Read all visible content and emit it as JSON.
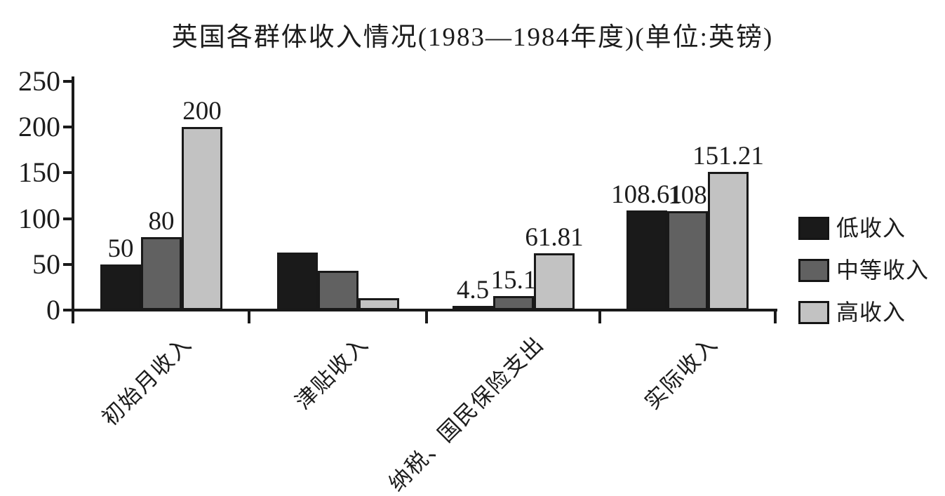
{
  "chart_data": {
    "type": "bar",
    "title": "英国各群体收入情况(1983—1984年度)(单位:英镑)",
    "unit": "英镑",
    "categories": [
      "初始月收入",
      "津贴收入",
      "纳税、国民保险支出",
      "实际收入"
    ],
    "series": [
      {
        "name": "低收入",
        "color": "#1a1a1a",
        "values": [
          50,
          63.11,
          4.5,
          108.61
        ],
        "labels": [
          "50",
          "",
          "4.5",
          "108.61"
        ]
      },
      {
        "name": "中等收入",
        "color": "#616161",
        "values": [
          80,
          43.1,
          15.1,
          108
        ],
        "labels": [
          "80",
          "",
          "15.1",
          "108"
        ]
      },
      {
        "name": "高收入",
        "color": "#c2c2c2",
        "values": [
          200,
          13.02,
          61.81,
          151.21
        ],
        "labels": [
          "200",
          "",
          "61.81",
          "151.21"
        ]
      }
    ],
    "xlabel": "",
    "ylabel": "",
    "ylim": [
      0,
      250
    ],
    "yticks": [
      0,
      50,
      100,
      150,
      200,
      250
    ],
    "legend": [
      "低收入",
      "中等收入",
      "高收入"
    ],
    "legend_position": "right",
    "grid": false,
    "axis_color": "#1a1a1a"
  }
}
